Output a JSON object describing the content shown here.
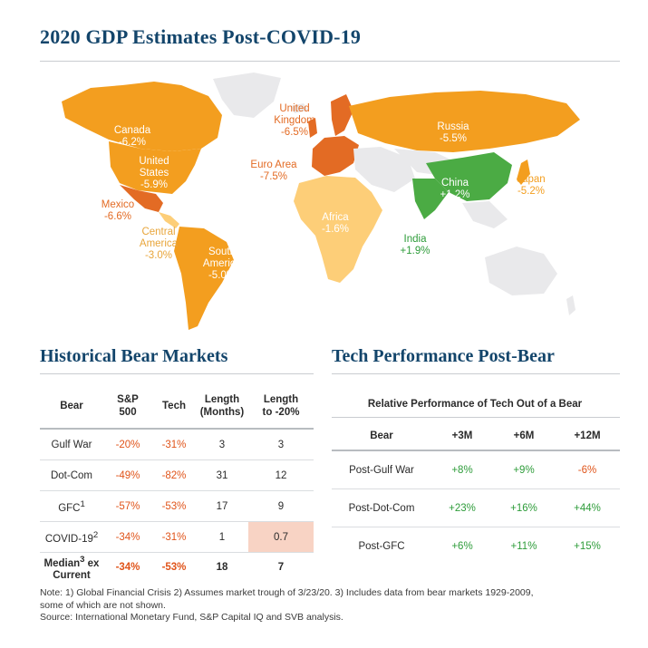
{
  "title": "2020 GDP Estimates Post-COVID-19",
  "colors": {
    "title": "#13456b",
    "negative_text": "#e0541a",
    "positive_text": "#2e9c3a",
    "land_default": "#e9e9eb",
    "land_orange": "#f39e1f",
    "land_dark_orange": "#e36b24",
    "land_light_orange": "#fdce78",
    "land_green": "#4bab44",
    "highlight_cell": "#f8d3c4"
  },
  "map": {
    "regions": [
      {
        "name": "Canada",
        "value": "-6.2%",
        "color": "#f39e1f",
        "text_color": "#ffffff"
      },
      {
        "name": "United States",
        "line1": "United",
        "line2": "States",
        "value": "-5.9%",
        "color": "#f39e1f",
        "text_color": "#ffffff"
      },
      {
        "name": "Mexico",
        "value": "-6.6%",
        "color": "#e36b24",
        "text_color": "#e36b24"
      },
      {
        "name": "Central America",
        "line1": "Central",
        "line2": "America",
        "value": "-3.0%",
        "color": "#fdce78",
        "text_color": "#e8a53a"
      },
      {
        "name": "South America",
        "line1": "South",
        "line2": "America",
        "value": "-5.0%",
        "color": "#f39e1f",
        "text_color": "#ffffff"
      },
      {
        "name": "United Kingdom",
        "line1": "United",
        "line2": "Kingdom",
        "value": "-6.5%",
        "color": "#e36b24",
        "text_color": "#e36b24"
      },
      {
        "name": "Euro Area",
        "value": "-7.5%",
        "color": "#e36b24",
        "text_color": "#e36b24"
      },
      {
        "name": "Russia",
        "value": "-5.5%",
        "color": "#f39e1f",
        "text_color": "#ffffff"
      },
      {
        "name": "Africa",
        "value": "-1.6%",
        "color": "#fdce78",
        "text_color": "#ffffff"
      },
      {
        "name": "China",
        "value": "+1.2%",
        "color": "#4bab44",
        "text_color": "#ffffff"
      },
      {
        "name": "India",
        "value": "+1.9%",
        "color": "#4bab44",
        "text_color": "#2e9c3a"
      },
      {
        "name": "Japan",
        "value": "-5.2%",
        "color": "#f39e1f",
        "text_color": "#f39e1f"
      }
    ]
  },
  "bear": {
    "title": "Historical Bear Markets",
    "headers": {
      "bear": "Bear",
      "sp1": "S&P",
      "sp2": "500",
      "tech": "Tech",
      "len1": "Length",
      "len2": "(Months)",
      "to1": "Length",
      "to2": "to -20%"
    },
    "rows": [
      {
        "name": "Gulf War",
        "sup": "",
        "sp": "-20%",
        "tech": "-31%",
        "len": "3",
        "to": "3"
      },
      {
        "name": "Dot-Com",
        "sup": "",
        "sp": "-49%",
        "tech": "-82%",
        "len": "31",
        "to": "12"
      },
      {
        "name": "GFC",
        "sup": "1",
        "sp": "-57%",
        "tech": "-53%",
        "len": "17",
        "to": "9"
      },
      {
        "name": "COVID-19",
        "sup": "2",
        "sp": "-34%",
        "tech": "-31%",
        "len": "1",
        "to": "0.7"
      }
    ],
    "median": {
      "line1": "Median",
      "sup": "3",
      "line1b": " ex",
      "line2": "Current",
      "sp": "-34%",
      "tech": "-53%",
      "len": "18",
      "to": "7"
    }
  },
  "tech": {
    "title": "Tech Performance Post-Bear",
    "subtitle": "Relative Performance of Tech Out of a Bear",
    "headers": {
      "bear": "Bear",
      "m3": "+3M",
      "m6": "+6M",
      "m12": "+12M"
    },
    "rows": [
      {
        "name": "Post-Gulf War",
        "m3": "+8%",
        "m6": "+9%",
        "m12": "-6%"
      },
      {
        "name": "Post-Dot-Com",
        "m3": "+23%",
        "m6": "+16%",
        "m12": "+44%"
      },
      {
        "name": "Post-GFC",
        "m3": "+6%",
        "m6": "+11%",
        "m12": "+15%"
      }
    ]
  },
  "notes": {
    "line1": "Note: 1) Global Financial Crisis 2) Assumes market trough of 3/23/20. 3) Includes data from bear markets 1929-2009,",
    "line2": "some of which are not shown.",
    "line3": "Source: International Monetary Fund, S&P Capital IQ and SVB analysis."
  }
}
